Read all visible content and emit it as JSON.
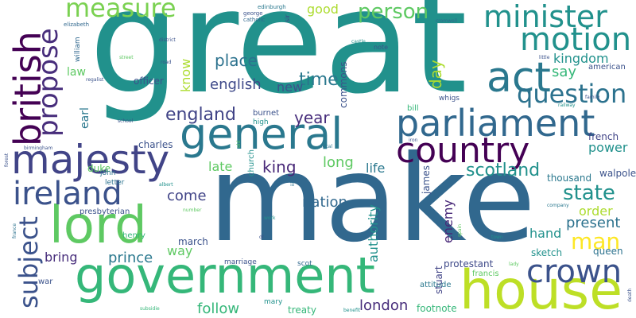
{
  "words": [
    {
      "text": "great",
      "color": "#21918c"
    },
    {
      "text": "make",
      "color": "#31688e"
    },
    {
      "text": "government",
      "color": "#35b779"
    },
    {
      "text": "house",
      "color": "#bddf26"
    },
    {
      "text": "lord",
      "color": "#5ec962"
    },
    {
      "text": "majesty",
      "color": "#414487"
    },
    {
      "text": "general",
      "color": "#2a788e"
    },
    {
      "text": "parliament",
      "color": "#31688e"
    },
    {
      "text": "country",
      "color": "#440154"
    },
    {
      "text": "ireland",
      "color": "#3b528b"
    },
    {
      "text": "british",
      "color": "#440154"
    },
    {
      "text": "act",
      "color": "#2a788e"
    },
    {
      "text": "motion",
      "color": "#21918c"
    },
    {
      "text": "minister",
      "color": "#21918c"
    },
    {
      "text": "crown",
      "color": "#3b528b"
    },
    {
      "text": "measure",
      "color": "#7ad151"
    },
    {
      "text": "propose",
      "color": "#472d7b"
    },
    {
      "text": "question",
      "color": "#2c728e"
    },
    {
      "text": "subject",
      "color": "#3b528b"
    },
    {
      "text": "person",
      "color": "#5ec962"
    },
    {
      "text": "state",
      "color": "#21918c"
    },
    {
      "text": "man",
      "color": "#fde725"
    },
    {
      "text": "england",
      "color": "#414487"
    },
    {
      "text": "scotland",
      "color": "#21918c"
    },
    {
      "text": "time",
      "color": "#2a788e"
    },
    {
      "text": "place",
      "color": "#2c728e"
    },
    {
      "text": "king",
      "color": "#482878"
    },
    {
      "text": "kingdom",
      "color": "#21918c"
    },
    {
      "text": "english",
      "color": "#3e4989"
    },
    {
      "text": "day",
      "color": "#addc30"
    },
    {
      "text": "say",
      "color": "#35b779"
    },
    {
      "text": "year",
      "color": "#472d7b"
    },
    {
      "text": "nation",
      "color": "#31688e"
    },
    {
      "text": "come",
      "color": "#414487"
    },
    {
      "text": "prince",
      "color": "#2a788e"
    },
    {
      "text": "london",
      "color": "#472d7b"
    },
    {
      "text": "follow",
      "color": "#35b779"
    },
    {
      "text": "late",
      "color": "#5ec962"
    },
    {
      "text": "long",
      "color": "#5ec962"
    },
    {
      "text": "good",
      "color": "#addc30"
    },
    {
      "text": "life",
      "color": "#2a788e"
    },
    {
      "text": "present",
      "color": "#2c728e"
    },
    {
      "text": "order",
      "color": "#addc30"
    },
    {
      "text": "power",
      "color": "#21918c"
    },
    {
      "text": "hand",
      "color": "#21918c"
    },
    {
      "text": "bring",
      "color": "#472d7b"
    },
    {
      "text": "way",
      "color": "#5ec962"
    },
    {
      "text": "new",
      "color": "#3b528b"
    },
    {
      "text": "authority",
      "color": "#21918c"
    },
    {
      "text": "enemy",
      "color": "#482878"
    },
    {
      "text": "law",
      "color": "#5ec962"
    },
    {
      "text": "know",
      "color": "#addc30"
    },
    {
      "text": "earl",
      "color": "#2a788e"
    },
    {
      "text": "officer",
      "color": "#3b528b"
    },
    {
      "text": "duke",
      "color": "#5ec962"
    },
    {
      "text": "charles",
      "color": "#3b528b"
    },
    {
      "text": "queen",
      "color": "#2c728e"
    },
    {
      "text": "french",
      "color": "#414487"
    },
    {
      "text": "thousand",
      "color": "#2a788e"
    },
    {
      "text": "walpole",
      "color": "#3b528b"
    },
    {
      "text": "march",
      "color": "#3b528b"
    },
    {
      "text": "sketch",
      "color": "#21918c"
    },
    {
      "text": "protestant",
      "color": "#3e4989"
    },
    {
      "text": "treaty",
      "color": "#35b779"
    },
    {
      "text": "footnote",
      "color": "#35b779"
    },
    {
      "text": "american",
      "color": "#3b528b"
    },
    {
      "text": "james",
      "color": "#3b528b"
    },
    {
      "text": "commons",
      "color": "#3b528b"
    },
    {
      "text": "stuart",
      "color": "#414487"
    },
    {
      "text": "attitude",
      "color": "#2a788e"
    },
    {
      "text": "francis",
      "color": "#5ec962"
    },
    {
      "text": "bill",
      "color": "#35b779"
    },
    {
      "text": "whigs",
      "color": "#3b528b"
    },
    {
      "text": "church",
      "color": "#21918c"
    },
    {
      "text": "burnet",
      "color": "#3b528b"
    },
    {
      "text": "high",
      "color": "#21918c"
    },
    {
      "text": "henry",
      "color": "#35b779"
    },
    {
      "text": "john",
      "color": "#2c728e"
    },
    {
      "text": "letter",
      "color": "#2c728e"
    },
    {
      "text": "presbyterian",
      "color": "#3b528b"
    },
    {
      "text": "war",
      "color": "#3b528b"
    },
    {
      "text": "mary",
      "color": "#21918c"
    },
    {
      "text": "scot",
      "color": "#31688e"
    },
    {
      "text": "marriage",
      "color": "#3b528b"
    },
    {
      "text": "william",
      "color": "#31688e"
    },
    {
      "text": "elizabeth",
      "color": "#31688e"
    },
    {
      "text": "george",
      "color": "#3b528b"
    },
    {
      "text": "catholic",
      "color": "#31688e"
    },
    {
      "text": "sir",
      "color": "#414487"
    },
    {
      "text": "edinburgh",
      "color": "#2a788e"
    },
    {
      "text": "note",
      "color": "#3b528b"
    },
    {
      "text": "district",
      "color": "#3b528b"
    },
    {
      "text": "street",
      "color": "#5ec962"
    },
    {
      "text": "road",
      "color": "#3b528b"
    },
    {
      "text": "school",
      "color": "#3b528b"
    },
    {
      "text": "birmingham",
      "color": "#3b528b"
    },
    {
      "text": "forest",
      "color": "#3b528b"
    },
    {
      "text": "france",
      "color": "#2c728e"
    },
    {
      "text": "spain",
      "color": "#5ec962"
    },
    {
      "text": "town",
      "color": "#21918c"
    },
    {
      "text": "company",
      "color": "#2a788e"
    },
    {
      "text": "railway",
      "color": "#21918c"
    },
    {
      "text": "iron",
      "color": "#3b528b"
    },
    {
      "text": "local",
      "color": "#2c728e"
    },
    {
      "text": "death",
      "color": "#3b528b"
    },
    {
      "text": "old",
      "color": "#5ec962"
    },
    {
      "text": "iii",
      "color": "#2c728e"
    },
    {
      "text": "work",
      "color": "#21918c"
    },
    {
      "text": "number",
      "color": "#5ec962"
    },
    {
      "text": "albert",
      "color": "#21918c"
    },
    {
      "text": "castle",
      "color": "#21918c"
    },
    {
      "text": "little",
      "color": "#3b528b"
    },
    {
      "text": "cromwell",
      "color": "#31688e"
    },
    {
      "text": "regalist",
      "color": "#3b528b"
    },
    {
      "text": "lady",
      "color": "#5ec962"
    },
    {
      "text": "dr",
      "color": "#3b528b"
    },
    {
      "text": "family",
      "color": "#3b528b"
    },
    {
      "text": "benefit",
      "color": "#21918c"
    },
    {
      "text": "subsidie",
      "color": "#35b779"
    }
  ]
}
